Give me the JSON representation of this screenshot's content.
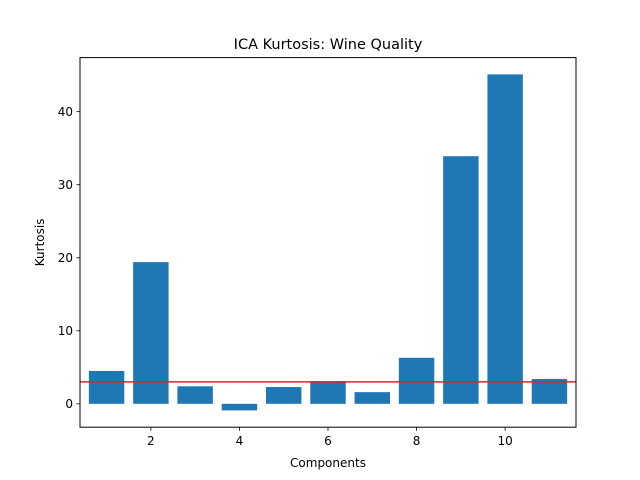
{
  "chart_data": {
    "type": "bar",
    "title": "ICA Kurtosis: Wine Quality",
    "xlabel": "Components",
    "ylabel": "Kurtosis",
    "x": [
      1,
      2,
      3,
      4,
      5,
      6,
      7,
      8,
      9,
      10,
      11
    ],
    "values": [
      4.5,
      19.4,
      2.4,
      -0.9,
      2.3,
      3.1,
      1.6,
      6.3,
      33.9,
      45.1,
      3.4
    ],
    "xlim": [
      0.4,
      11.6
    ],
    "ylim": [
      -3.2,
      47.4
    ],
    "xticks": [
      2,
      4,
      6,
      8,
      10
    ],
    "yticks": [
      0,
      10,
      20,
      30,
      40
    ],
    "reference_line": {
      "y": 3,
      "color": "#d62728"
    },
    "bar_color": "#1f77b4",
    "grid": false,
    "legend": "none"
  }
}
